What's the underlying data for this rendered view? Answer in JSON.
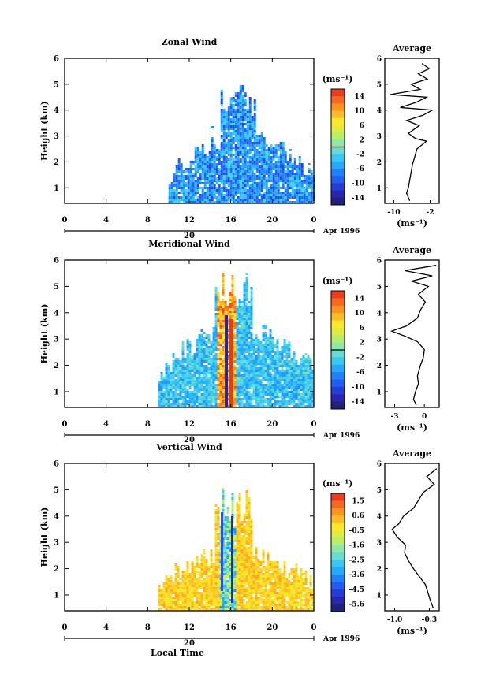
{
  "chart_data": [
    {
      "type": "heatmap",
      "title": "Zonal Wind",
      "ylabel": "Height (km)",
      "yticks": [
        1,
        2,
        3,
        4,
        5,
        6
      ],
      "ylim": [
        0.4,
        6.0
      ],
      "xticks": [
        "0",
        "4",
        "8",
        "12",
        "16",
        "20",
        "0"
      ],
      "xlim": [
        0,
        24
      ],
      "day_label": "20",
      "month_label": "Apr 1996",
      "colorbar": {
        "unit": "(ms⁻¹)",
        "ticks": [
          "14",
          "10",
          "6",
          "2",
          "-2",
          "-6",
          "-10",
          "-14"
        ],
        "range": [
          -16,
          16
        ],
        "zero_line": 0
      },
      "data_extent": {
        "x_start_hours": 10.0,
        "x_end_hours": 24.0
      },
      "profile": {
        "title": "Average",
        "xlabel": "(ms⁻¹)",
        "xticks": [
          "-10",
          "-2"
        ],
        "xlim": [
          -12,
          0
        ],
        "height": [
          0.5,
          0.8,
          1.0,
          1.3,
          1.6,
          1.9,
          2.2,
          2.5,
          2.8,
          2.9,
          3.1,
          3.4,
          3.6,
          3.8,
          4.0,
          4.1,
          4.3,
          4.5,
          4.6,
          4.8,
          5.0,
          5.2,
          5.4,
          5.6,
          5.8
        ],
        "value": [
          -6.5,
          -7.2,
          -6.8,
          -6.5,
          -6.2,
          -5.9,
          -5.4,
          -4.9,
          -2.8,
          -5.2,
          -6.8,
          -4.4,
          -7.2,
          -3.6,
          -1.5,
          -8.6,
          -5.1,
          -2.8,
          -10.8,
          -4.2,
          -6.2,
          -2.6,
          -4.6,
          -2.2,
          -3.8
        ]
      }
    },
    {
      "type": "heatmap",
      "title": "Meridional Wind",
      "ylabel": "Height (km)",
      "yticks": [
        1,
        2,
        3,
        4,
        5,
        6
      ],
      "ylim": [
        0.4,
        6.0
      ],
      "xticks": [
        "0",
        "4",
        "8",
        "12",
        "16",
        "20",
        "0"
      ],
      "xlim": [
        0,
        24
      ],
      "day_label": "20",
      "month_label": "Apr 1996",
      "colorbar": {
        "unit": "(ms⁻¹)",
        "ticks": [
          "14",
          "10",
          "6",
          "2",
          "-2",
          "-6",
          "-10",
          "-14"
        ],
        "range": [
          -16,
          16
        ],
        "zero_line": 0
      },
      "data_extent": {
        "x_start_hours": 9.0,
        "x_end_hours": 24.0
      },
      "profile": {
        "title": "Average",
        "xlabel": "(ms⁻¹)",
        "xticks": [
          "-3",
          "0"
        ],
        "xlim": [
          -4,
          1.5
        ],
        "height": [
          0.5,
          0.7,
          1.0,
          1.3,
          1.6,
          2.0,
          2.3,
          2.6,
          2.9,
          3.1,
          3.3,
          3.5,
          3.8,
          4.1,
          4.4,
          4.7,
          5.0,
          5.2,
          5.4,
          5.6,
          5.8
        ],
        "value": [
          -0.8,
          -1.1,
          -0.9,
          -0.6,
          -0.7,
          -0.4,
          -0.1,
          0.0,
          -0.7,
          -1.9,
          -3.3,
          -1.8,
          -0.7,
          -0.4,
          0.1,
          -0.6,
          0.4,
          -1.3,
          0.8,
          -2.0,
          1.2
        ]
      }
    },
    {
      "type": "heatmap",
      "title": "Vertical Wind",
      "ylabel": "Height (km)",
      "xlabel": "Local Time",
      "yticks": [
        1,
        2,
        3,
        4,
        5,
        6
      ],
      "ylim": [
        0.4,
        6.0
      ],
      "xticks": [
        "0",
        "4",
        "8",
        "12",
        "16",
        "20",
        "0"
      ],
      "xlim": [
        0,
        24
      ],
      "day_label": "20",
      "month_label": "Apr 1996",
      "colorbar": {
        "unit": "(ms⁻¹)",
        "ticks": [
          "1.5",
          "0.6",
          "-0.5",
          "-1.6",
          "-2.5",
          "-3.6",
          "-4.5",
          "-5.6"
        ],
        "range": [
          -6.0,
          2.0
        ]
      },
      "data_extent": {
        "x_start_hours": 9.0,
        "x_end_hours": 24.0
      },
      "profile": {
        "title": "Average",
        "xlabel": "(ms⁻¹)",
        "xticks": [
          "-1.0",
          "-0.3"
        ],
        "xlim": [
          -1.2,
          -0.1
        ],
        "height": [
          0.5,
          0.8,
          1.1,
          1.4,
          1.7,
          2.0,
          2.3,
          2.6,
          2.9,
          3.2,
          3.5,
          3.7,
          4.0,
          4.3,
          4.6,
          4.9,
          5.2,
          5.5,
          5.8
        ],
        "value": [
          -0.22,
          -0.28,
          -0.33,
          -0.38,
          -0.5,
          -0.62,
          -0.72,
          -0.8,
          -0.78,
          -0.95,
          -1.05,
          -0.92,
          -0.82,
          -0.62,
          -0.52,
          -0.42,
          -0.2,
          -0.35,
          -0.15
        ]
      }
    }
  ]
}
